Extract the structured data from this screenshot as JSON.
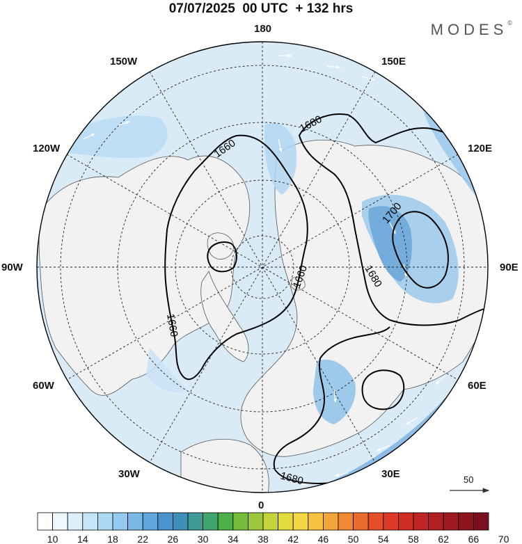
{
  "title": "07/07/2025  00 UTC  + 132 hrs",
  "logo": {
    "text": "MODES",
    "mark": "©"
  },
  "longitude_labels": [
    "180",
    "150E",
    "120E",
    "90E",
    "60E",
    "30E",
    "0",
    "30W",
    "60W",
    "90W",
    "120W",
    "150W"
  ],
  "contours": [
    {
      "label": "1660",
      "level": 1660
    },
    {
      "label": "1680",
      "level": 1680
    },
    {
      "label": "1700",
      "level": 1700
    },
    {
      "label": "1680",
      "level": 1680
    },
    {
      "label": "1660",
      "level": 1660
    },
    {
      "label": "1660",
      "level": 1660
    },
    {
      "label": "1680",
      "level": 1680
    }
  ],
  "vector_reference": {
    "label": "50"
  },
  "colorbar": {
    "tick_labels": [
      "10",
      "14",
      "18",
      "22",
      "26",
      "30",
      "34",
      "38",
      "42",
      "46",
      "50",
      "54",
      "58",
      "62",
      "66",
      "70"
    ],
    "colors": [
      "#ffffff",
      "#eef8fd",
      "#dcf0fb",
      "#c6e6f8",
      "#add9f3",
      "#93caee",
      "#7ab9e6",
      "#5fa6dc",
      "#4b93cf",
      "#3f8fb9",
      "#3d9a96",
      "#3fa76d",
      "#4db04a",
      "#74bb3a",
      "#9cc73a",
      "#c4d23b",
      "#e3da3e",
      "#f4d843",
      "#f6c240",
      "#f4a53a",
      "#f08834",
      "#eb6b2f",
      "#e44f2a",
      "#dd3a27",
      "#d02d25",
      "#c02523",
      "#b01f22",
      "#9f1a21",
      "#8d1520",
      "#7a101e"
    ]
  },
  "colors": {
    "ocean_light": "#dcecf7",
    "land": "#f2f2f2",
    "jet": "#5a9fd6"
  }
}
